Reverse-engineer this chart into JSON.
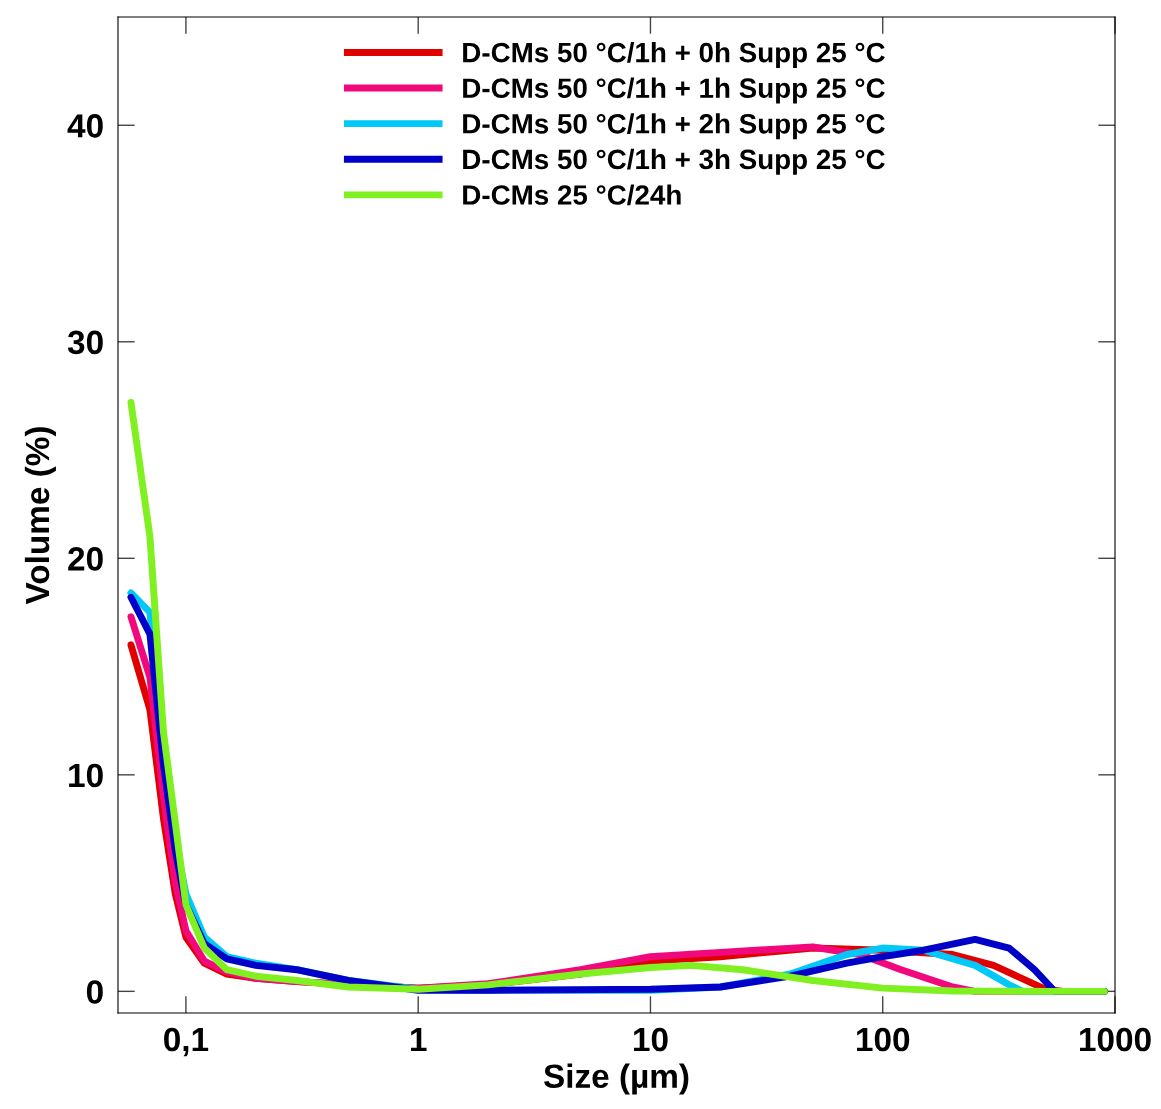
{
  "chart_data": {
    "type": "line",
    "xlabel": "Size (µm)",
    "ylabel": "Volume (%)",
    "log": "x",
    "xlim": [
      0.051,
      1000
    ],
    "ylim": [
      -1,
      45
    ],
    "xticks": [
      {
        "value": 0.1,
        "label": "0,1"
      },
      1,
      10,
      100,
      1000
    ],
    "yticks": [
      0,
      10,
      20,
      30,
      40
    ],
    "grid": false,
    "legend": "top",
    "marker": "none",
    "line_style": "solid",
    "series": [
      {
        "name": "D-CMs 50 °C/1h + 0h Supp 25 °C",
        "color": "#e00000",
        "x": [
          0.058,
          0.07,
          0.08,
          0.09,
          0.1,
          0.12,
          0.15,
          0.2,
          0.3,
          1,
          2,
          5,
          10,
          20,
          50,
          100,
          200,
          300,
          500,
          600,
          900
        ],
        "values": [
          16,
          13,
          8,
          4.5,
          2.5,
          1.3,
          0.8,
          0.6,
          0.45,
          0.15,
          0.3,
          0.8,
          1.4,
          1.6,
          2.0,
          1.9,
          1.7,
          1.2,
          0.1,
          0,
          0
        ]
      },
      {
        "name": "D-CMs 50 °C/1h + 1h Supp 25 °C",
        "color": "#f0087c",
        "x": [
          0.058,
          0.07,
          0.08,
          0.09,
          0.1,
          0.12,
          0.15,
          0.2,
          0.3,
          1,
          2,
          5,
          10,
          20,
          50,
          80,
          120,
          200,
          250,
          900
        ],
        "values": [
          17.3,
          14.5,
          9,
          5,
          2.8,
          1.4,
          0.9,
          0.6,
          0.45,
          0.15,
          0.35,
          1.0,
          1.6,
          1.8,
          2.05,
          1.7,
          1.0,
          0.2,
          0,
          0
        ]
      },
      {
        "name": "D-CMs 50 °C/1h + 2h Supp 25 °C",
        "color": "#00c8f8",
        "x": [
          0.058,
          0.07,
          0.08,
          0.09,
          0.1,
          0.12,
          0.15,
          0.2,
          0.3,
          0.5,
          1,
          2,
          10,
          20,
          40,
          70,
          100,
          150,
          250,
          350,
          400,
          900
        ],
        "values": [
          18.4,
          17.5,
          11,
          7,
          4.5,
          2.5,
          1.6,
          1.3,
          1.0,
          0.5,
          0.1,
          0.05,
          0.05,
          0.2,
          0.8,
          1.7,
          2.0,
          1.9,
          1.2,
          0.3,
          0,
          0
        ]
      },
      {
        "name": "D-CMs 50 °C/1h + 3h Supp 25 °C",
        "color": "#0000c8",
        "x": [
          0.058,
          0.07,
          0.08,
          0.09,
          0.1,
          0.12,
          0.15,
          0.2,
          0.3,
          0.5,
          1,
          2,
          10,
          20,
          40,
          70,
          100,
          150,
          250,
          350,
          450,
          550,
          900
        ],
        "values": [
          18.2,
          16.5,
          10.5,
          6.5,
          4,
          2.2,
          1.5,
          1.2,
          1.0,
          0.5,
          0.05,
          0.05,
          0.1,
          0.2,
          0.7,
          1.3,
          1.6,
          1.9,
          2.4,
          2.0,
          1.0,
          0,
          0
        ]
      },
      {
        "name": "D-CMs 25 °C/24h",
        "color": "#80f020",
        "x": [
          0.058,
          0.07,
          0.08,
          0.1,
          0.12,
          0.15,
          0.2,
          0.3,
          0.5,
          1,
          2,
          5,
          10,
          15,
          25,
          50,
          100,
          200,
          500,
          900
        ],
        "values": [
          27.2,
          21,
          12,
          4,
          2,
          1,
          0.7,
          0.5,
          0.2,
          0.1,
          0.3,
          0.8,
          1.1,
          1.2,
          1.0,
          0.5,
          0.15,
          0.02,
          0,
          0
        ]
      }
    ]
  }
}
